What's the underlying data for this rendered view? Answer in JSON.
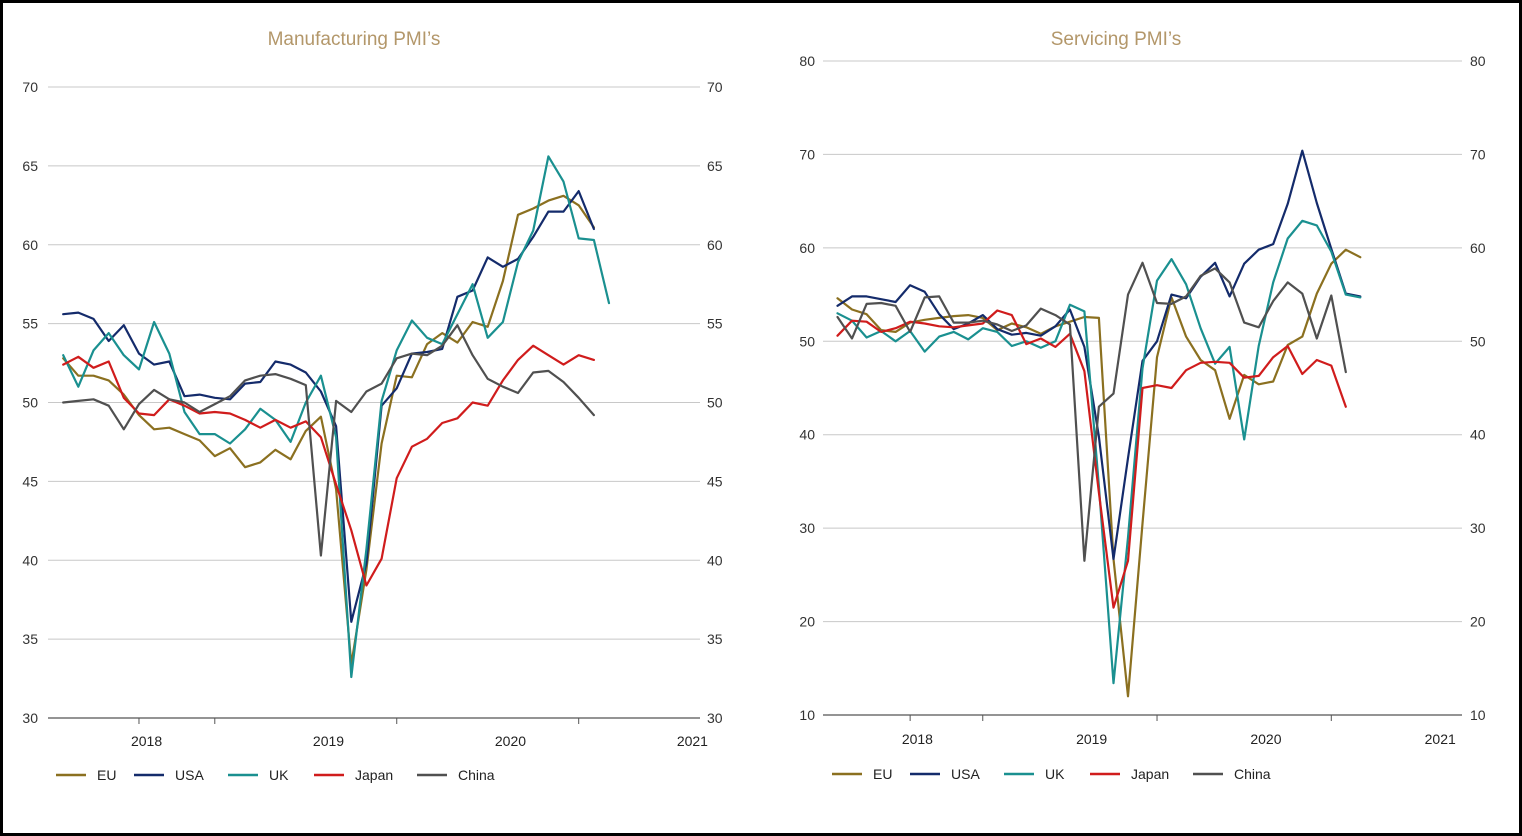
{
  "chart_data": [
    {
      "type": "line",
      "title": "Manufacturing PMI’s",
      "ylim": [
        30,
        70
      ],
      "yticks": [
        30,
        35,
        40,
        45,
        50,
        55,
        60,
        65,
        70
      ],
      "ytick_labels": [
        "30",
        "35",
        "40",
        "45",
        "50",
        "55",
        "60",
        "65",
        "70"
      ],
      "grid": true,
      "legend": "bottom",
      "x_start": "2018-01",
      "xlim": [
        "2017-12",
        "2021-07"
      ],
      "year_labels": [
        "2018",
        "2019",
        "2020",
        "2021"
      ],
      "series": [
        {
          "name": "EU",
          "color": "#8b7020",
          "values": [
            52.8,
            51.7,
            51.7,
            51.4,
            50.5,
            49.2,
            48.3,
            48.4,
            48.0,
            47.6,
            46.6,
            47.1,
            45.9,
            46.2,
            47.0,
            46.4,
            48.2,
            49.1,
            44.5,
            33.4,
            39.4,
            47.4,
            51.7,
            51.6,
            53.7,
            54.4,
            53.8,
            55.1,
            54.8,
            57.7,
            61.9,
            62.3,
            62.8,
            63.1,
            62.5,
            61.1
          ]
        },
        {
          "name": "USA",
          "color": "#142b6b",
          "values": [
            55.6,
            55.7,
            55.3,
            53.9,
            54.9,
            53.1,
            52.4,
            52.6,
            50.4,
            50.5,
            50.3,
            50.2,
            51.2,
            51.3,
            52.6,
            52.4,
            51.9,
            50.7,
            48.5,
            36.1,
            39.8,
            49.8,
            50.9,
            53.1,
            53.2,
            53.4,
            56.7,
            57.1,
            59.2,
            58.6,
            59.1,
            60.5,
            62.1,
            62.1,
            63.4,
            61.0
          ]
        },
        {
          "name": "UK",
          "color": "#1a9090",
          "values": [
            53.0,
            51.0,
            53.3,
            54.4,
            53.0,
            52.1,
            55.1,
            53.1,
            49.4,
            48.0,
            48.0,
            47.4,
            48.3,
            49.6,
            48.9,
            47.5,
            50.0,
            51.7,
            47.8,
            32.6,
            40.7,
            50.1,
            53.3,
            55.2,
            54.1,
            53.7,
            55.6,
            57.5,
            54.1,
            55.1,
            58.9,
            60.9,
            65.6,
            64.0,
            60.4,
            60.3,
            56.3
          ]
        },
        {
          "name": "Japan",
          "color": "#d01c1c",
          "values": [
            52.4,
            52.9,
            52.2,
            52.6,
            50.3,
            49.3,
            49.2,
            50.2,
            49.8,
            49.3,
            49.4,
            49.3,
            48.9,
            48.4,
            48.9,
            48.4,
            48.8,
            47.8,
            44.8,
            41.9,
            38.4,
            40.1,
            45.2,
            47.2,
            47.7,
            48.7,
            49.0,
            50.0,
            49.8,
            51.4,
            52.7,
            53.6,
            53.0,
            52.4,
            53.0,
            52.7
          ]
        },
        {
          "name": "China",
          "color": "#505050",
          "values": [
            50.0,
            50.1,
            50.2,
            49.8,
            48.3,
            49.9,
            50.8,
            50.2,
            50.0,
            49.4,
            49.9,
            50.4,
            51.4,
            51.7,
            51.8,
            51.5,
            51.1,
            40.3,
            50.1,
            49.4,
            50.7,
            51.2,
            52.8,
            53.1,
            53.0,
            53.6,
            54.9,
            53.0,
            51.5,
            51.0,
            50.6,
            51.9,
            52.0,
            51.3,
            50.3,
            49.2
          ]
        }
      ]
    },
    {
      "type": "line",
      "title": "Servicing PMI’s",
      "ylim": [
        10,
        80
      ],
      "yticks": [
        10,
        20,
        30,
        40,
        50,
        60,
        70,
        80
      ],
      "ytick_labels": [
        "10",
        "20",
        "30",
        "40",
        "50",
        "60",
        "70",
        "80"
      ],
      "grid": true,
      "legend": "bottom",
      "x_start": "2018-01",
      "xlim": [
        "2017-12",
        "2021-08"
      ],
      "year_labels": [
        "2018",
        "2019",
        "2020",
        "2021"
      ],
      "series": [
        {
          "name": "EU",
          "color": "#8b7020",
          "values": [
            54.6,
            53.4,
            52.9,
            51.2,
            51.0,
            52.0,
            52.3,
            52.5,
            52.7,
            52.8,
            52.5,
            51.2,
            51.9,
            51.5,
            50.8,
            51.6,
            52.1,
            52.6,
            52.5,
            26.7,
            12.0,
            30.5,
            48.3,
            54.7,
            50.5,
            48.0,
            46.9,
            41.7,
            46.4,
            45.4,
            45.7,
            49.6,
            50.5,
            55.1,
            58.3,
            59.8,
            59.0
          ]
        },
        {
          "name": "USA",
          "color": "#142b6b",
          "values": [
            53.8,
            54.8,
            54.8,
            54.5,
            54.2,
            56.0,
            55.3,
            52.9,
            51.3,
            51.9,
            52.8,
            51.3,
            50.7,
            50.9,
            50.6,
            51.6,
            53.4,
            49.4,
            39.8,
            26.7,
            37.5,
            47.9,
            50.0,
            55.0,
            54.6,
            56.9,
            58.4,
            54.8,
            58.3,
            59.8,
            60.4,
            64.7,
            70.4,
            64.8,
            59.9,
            55.1,
            54.8
          ]
        },
        {
          "name": "UK",
          "color": "#1a9090",
          "values": [
            53.0,
            52.2,
            50.4,
            51.1,
            50.0,
            51.1,
            48.9,
            50.5,
            51.0,
            50.2,
            51.4,
            51.0,
            49.5,
            50.0,
            49.3,
            50.0,
            53.9,
            53.2,
            34.5,
            13.4,
            29.0,
            47.1,
            56.5,
            58.8,
            56.1,
            51.4,
            47.6,
            49.4,
            39.5,
            49.5,
            56.3,
            61.0,
            62.9,
            62.4,
            59.6,
            55.0,
            54.7
          ]
        },
        {
          "name": "Japan",
          "color": "#d01c1c",
          "values": [
            50.6,
            52.2,
            52.1,
            51.0,
            51.4,
            52.1,
            51.9,
            51.6,
            51.5,
            51.7,
            51.9,
            53.3,
            52.8,
            49.7,
            50.3,
            49.4,
            50.8,
            46.8,
            33.8,
            21.5,
            26.5,
            45.0,
            45.3,
            45.0,
            46.9,
            47.7,
            47.8,
            47.7,
            46.1,
            46.3,
            48.3,
            49.5,
            46.5,
            48.0,
            47.4,
            43.0
          ]
        },
        {
          "name": "China",
          "color": "#505050",
          "values": [
            52.6,
            50.3,
            54.0,
            54.1,
            53.8,
            51.0,
            54.7,
            54.8,
            52.0,
            52.0,
            52.2,
            51.8,
            51.1,
            51.7,
            53.5,
            52.8,
            51.8,
            26.5,
            43.0,
            44.4,
            55.0,
            58.4,
            54.1,
            54.0,
            54.8,
            57.0,
            57.8,
            56.3,
            52.0,
            51.5,
            54.3,
            56.3,
            55.1,
            50.3,
            54.9,
            46.7
          ]
        }
      ]
    }
  ]
}
